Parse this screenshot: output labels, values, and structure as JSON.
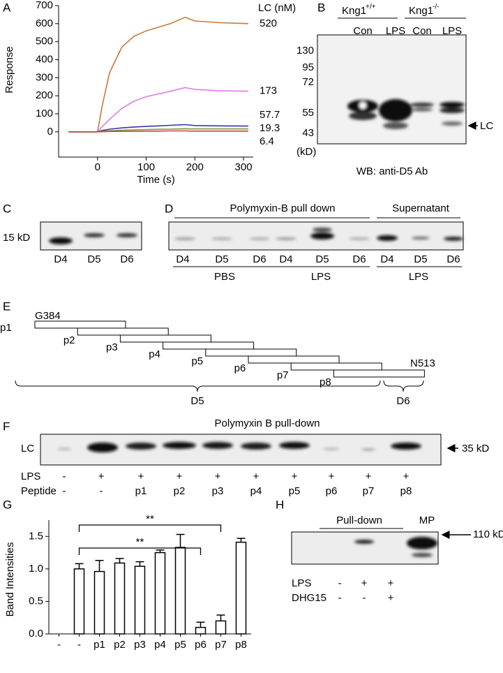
{
  "panels": [
    "A",
    "B",
    "C",
    "D",
    "E",
    "F",
    "G",
    "H"
  ],
  "chart_data": [
    {
      "type": "line",
      "xlabel": "Time (s)",
      "ylabel": "Response",
      "legend_title": "LC (nM)",
      "x": [
        -60,
        0,
        10,
        25,
        50,
        75,
        100,
        125,
        150,
        180,
        200,
        250,
        310
      ],
      "xlim": [
        -80,
        320
      ],
      "xticks": [
        0,
        100,
        200,
        300
      ],
      "ylim": [
        -140,
        700
      ],
      "yticks": [
        0,
        100,
        200,
        300,
        400,
        500,
        600,
        700
      ],
      "series": [
        {
          "name": "520",
          "color": "#c8783c",
          "values": [
            0,
            0,
            150,
            330,
            470,
            530,
            560,
            580,
            600,
            635,
            615,
            605,
            600
          ]
        },
        {
          "name": "173",
          "color": "#e07ae8",
          "values": [
            0,
            0,
            30,
            70,
            130,
            170,
            195,
            210,
            225,
            245,
            235,
            228,
            225
          ]
        },
        {
          "name": "57.7",
          "color": "#3838a8",
          "values": [
            0,
            0,
            8,
            15,
            22,
            27,
            30,
            33,
            36,
            40,
            35,
            33,
            32
          ]
        },
        {
          "name": "19.3",
          "color": "#7a9a30",
          "values": [
            0,
            0,
            3,
            6,
            9,
            11,
            13,
            14,
            15,
            17,
            16,
            16,
            16
          ]
        },
        {
          "name": "6.4",
          "color": "#d04040",
          "values": [
            0,
            0,
            1,
            2,
            3,
            3,
            4,
            4,
            5,
            5,
            4,
            4,
            4
          ]
        }
      ]
    },
    {
      "type": "bar",
      "ylabel": "Band Intensities",
      "categories": [
        "-",
        "-",
        "p1",
        "p2",
        "p3",
        "p4",
        "p5",
        "p6",
        "p7",
        "p8"
      ],
      "values": [
        null,
        1.0,
        0.96,
        1.09,
        1.04,
        1.25,
        1.33,
        0.1,
        0.2,
        1.41
      ],
      "errors": [
        null,
        0.08,
        0.17,
        0.07,
        0.07,
        0.04,
        0.2,
        0.08,
        0.09,
        0.06
      ],
      "color": "#ffffff",
      "ylim": [
        0,
        1.75
      ],
      "yticks": [
        {
          "value": 0,
          "label": "0.0"
        },
        0.5,
        {
          "value": 1,
          "label": "1.0"
        },
        1.5
      ],
      "annotations": [
        "**",
        "**"
      ]
    }
  ],
  "blot_b": {
    "gene": "Kng1",
    "genotypes": [
      "+/+",
      "-/-"
    ],
    "lanes": [
      "Con",
      "LPS",
      "Con",
      "LPS"
    ],
    "markers": [
      "130",
      "95",
      "72",
      "55",
      "43"
    ],
    "unit": "(kD)",
    "arrow_label": "LC",
    "caption": "WB: anti-D5 Ab"
  },
  "blot_c": {
    "marker": "15 kD",
    "lanes": [
      "D4",
      "D5",
      "D6"
    ]
  },
  "blot_d": {
    "headers": [
      "Polymyxin-B pull down",
      "Supernatant"
    ],
    "lanes": [
      "D4",
      "D5",
      "D6",
      "D4",
      "D5",
      "D6",
      "D4",
      "D5",
      "D6"
    ],
    "groups": [
      "PBS",
      "LPS",
      "LPS"
    ]
  },
  "diagram_e": {
    "start": "G384",
    "end": "N513",
    "peptides": [
      "p1",
      "p2",
      "p3",
      "p4",
      "p5",
      "p6",
      "p7",
      "p8"
    ],
    "domains": [
      "D5",
      "D6"
    ]
  },
  "blot_f": {
    "title": "Polymyxin B pull-down",
    "row_label": "LC",
    "marker": "35 kD",
    "rows": [
      {
        "label": "LPS",
        "values": [
          "-",
          "+",
          "+",
          "+",
          "+",
          "+",
          "+",
          "+",
          "+",
          "+"
        ]
      },
      {
        "label": "Peptide",
        "values": [
          "-",
          "-",
          "p1",
          "p2",
          "p3",
          "p4",
          "p5",
          "p6",
          "p7",
          "p8"
        ]
      }
    ]
  },
  "blot_h": {
    "header": "Pull-down",
    "lane_mp": "MP",
    "marker": "110 kD",
    "rows": [
      {
        "label": "LPS",
        "values": [
          "-",
          "+",
          "+"
        ]
      },
      {
        "label": "DHG15",
        "values": [
          "-",
          "-",
          "+"
        ]
      }
    ]
  }
}
